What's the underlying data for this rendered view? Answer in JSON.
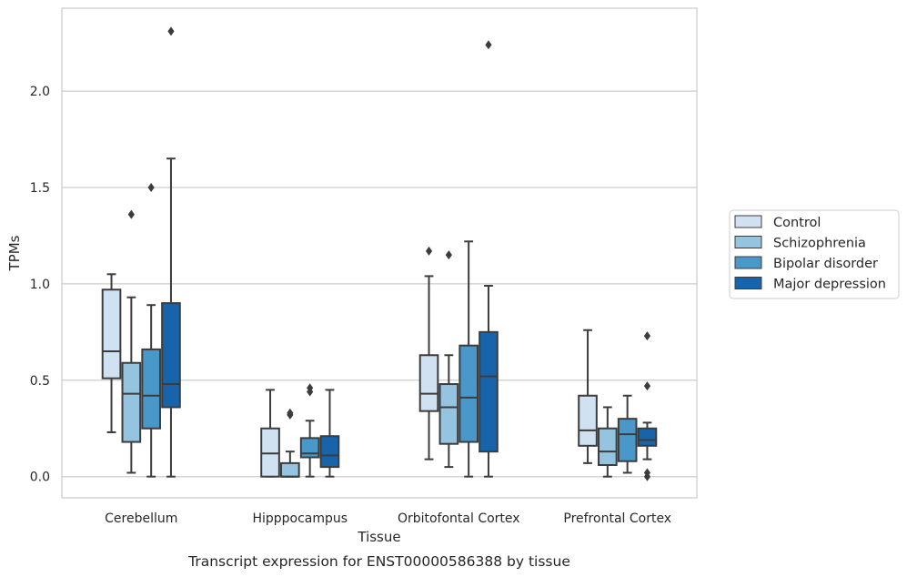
{
  "chart_data": {
    "type": "box",
    "caption": "Transcript expression for ENST00000586388 by tissue",
    "xlabel": "Tissue",
    "ylabel": "TPMs",
    "ylim": [
      -0.11,
      2.43
    ],
    "yticks": [
      0.0,
      0.5,
      1.0,
      1.5,
      2.0
    ],
    "ytick_labels": [
      "0.0",
      "0.5",
      "1.0",
      "1.5",
      "2.0"
    ],
    "grid": "horizontal",
    "legend_position": "right-center",
    "categories": [
      "Cerebellum",
      "Hipppocampus",
      "Orbitofontal Cortex",
      "Prefrontal Cortex"
    ],
    "series": [
      {
        "name": "Control",
        "color": "#d0e1f2",
        "boxes": [
          {
            "whislo": 0.23,
            "q1": 0.51,
            "med": 0.65,
            "q3": 0.97,
            "whishi": 1.05,
            "fliers": []
          },
          {
            "whislo": 0.0,
            "q1": 0.0,
            "med": 0.12,
            "q3": 0.25,
            "whishi": 0.45,
            "fliers": []
          },
          {
            "whislo": 0.09,
            "q1": 0.34,
            "med": 0.43,
            "q3": 0.63,
            "whishi": 1.04,
            "fliers": [
              1.17
            ]
          },
          {
            "whislo": 0.07,
            "q1": 0.16,
            "med": 0.24,
            "q3": 0.42,
            "whishi": 0.76,
            "fliers": []
          }
        ]
      },
      {
        "name": "Schizophrenia",
        "color": "#94c4df",
        "boxes": [
          {
            "whislo": 0.02,
            "q1": 0.18,
            "med": 0.43,
            "q3": 0.59,
            "whishi": 0.93,
            "fliers": [
              1.36
            ]
          },
          {
            "whislo": 0.0,
            "q1": 0.0,
            "med": 0.0,
            "q3": 0.07,
            "whishi": 0.13,
            "fliers": [
              0.32,
              0.33
            ]
          },
          {
            "whislo": 0.05,
            "q1": 0.17,
            "med": 0.36,
            "q3": 0.48,
            "whishi": 0.63,
            "fliers": [
              1.15
            ]
          },
          {
            "whislo": 0.0,
            "q1": 0.06,
            "med": 0.13,
            "q3": 0.25,
            "whishi": 0.36,
            "fliers": []
          }
        ]
      },
      {
        "name": "Bipolar disorder",
        "color": "#4a98c9",
        "boxes": [
          {
            "whislo": 0.0,
            "q1": 0.25,
            "med": 0.42,
            "q3": 0.66,
            "whishi": 0.89,
            "fliers": [
              1.5
            ]
          },
          {
            "whislo": 0.0,
            "q1": 0.1,
            "med": 0.12,
            "q3": 0.2,
            "whishi": 0.29,
            "fliers": [
              0.44,
              0.46
            ]
          },
          {
            "whislo": 0.0,
            "q1": 0.18,
            "med": 0.41,
            "q3": 0.68,
            "whishi": 1.22,
            "fliers": []
          },
          {
            "whislo": 0.02,
            "q1": 0.08,
            "med": 0.22,
            "q3": 0.3,
            "whishi": 0.42,
            "fliers": []
          }
        ]
      },
      {
        "name": "Major depression",
        "color": "#1764ab",
        "boxes": [
          {
            "whislo": 0.0,
            "q1": 0.36,
            "med": 0.48,
            "q3": 0.9,
            "whishi": 1.65,
            "fliers": [
              2.31
            ]
          },
          {
            "whislo": 0.0,
            "q1": 0.05,
            "med": 0.11,
            "q3": 0.21,
            "whishi": 0.45,
            "fliers": []
          },
          {
            "whislo": 0.0,
            "q1": 0.13,
            "med": 0.52,
            "q3": 0.75,
            "whishi": 0.99,
            "fliers": [
              2.24
            ]
          },
          {
            "whislo": 0.09,
            "q1": 0.16,
            "med": 0.19,
            "q3": 0.25,
            "whishi": 0.28,
            "fliers": [
              0.73,
              0.47,
              0.02,
              0.0
            ]
          }
        ]
      }
    ]
  }
}
